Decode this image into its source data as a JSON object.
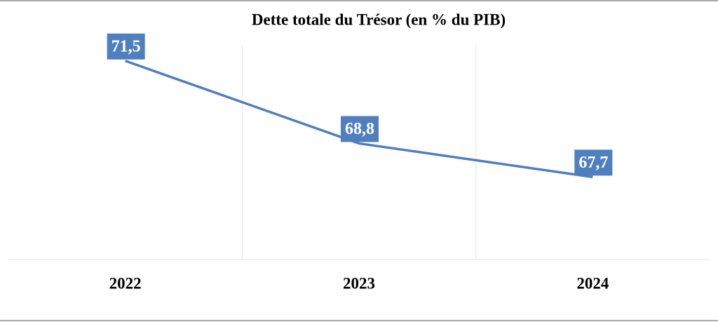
{
  "chart_data": {
    "type": "line",
    "title": "Dette totale du Trésor (en % du PIB)",
    "categories": [
      "2022",
      "2023",
      "2024"
    ],
    "values": [
      71.5,
      68.8,
      67.7
    ],
    "value_labels": [
      "71,5",
      "68,8",
      "67,7"
    ],
    "color": "#4f7fbf",
    "ylim": [
      65,
      72
    ]
  }
}
